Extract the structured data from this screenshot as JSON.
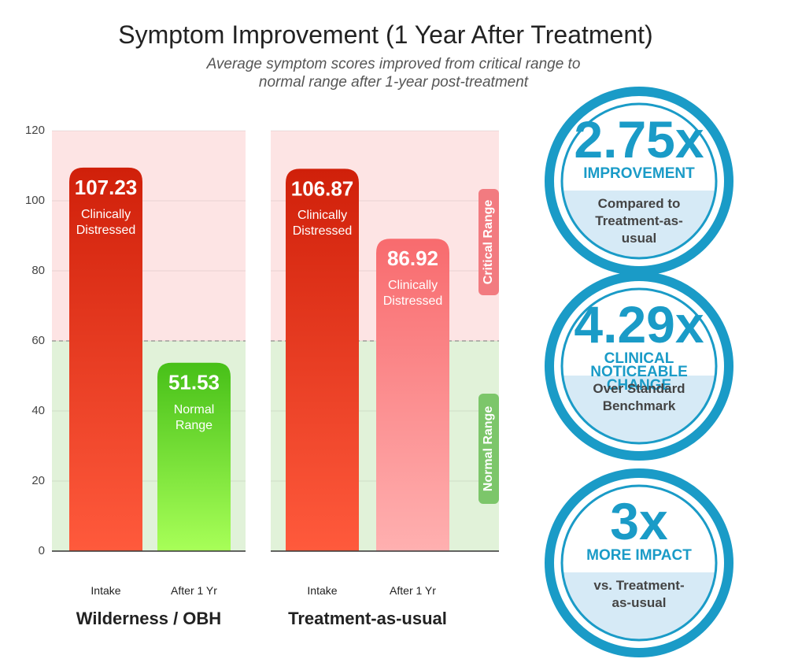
{
  "chart_data": {
    "type": "bar",
    "title": "Symptom Improvement (1 Year After Treatment)",
    "subtitle": "Average symptom scores improved from critical range to normal range after 1-year post-treatment",
    "ylim": [
      0,
      120
    ],
    "yticks": [
      0,
      20,
      40,
      60,
      80,
      100,
      120
    ],
    "grid": true,
    "threshold": 60,
    "bands": [
      {
        "label": "Critical Range",
        "range": [
          60,
          120
        ],
        "color": "#fde4e4",
        "tag_color": "#f27b80"
      },
      {
        "label": "Normal Range",
        "range": [
          0,
          60
        ],
        "color": "#e1f2d9",
        "tag_color": "#7cc66a"
      }
    ],
    "groups": [
      {
        "name": "Wilderness / OBH",
        "categories": [
          "Intake",
          "After 1 Yr"
        ],
        "values": [
          107.23,
          51.53
        ],
        "status": [
          "Clinically Distressed",
          "Normal Range"
        ],
        "colors": [
          [
            "#d0200a",
            "#ff5a3c"
          ],
          [
            "#47c018",
            "#a8ff58"
          ]
        ]
      },
      {
        "name": "Treatment-as-usual",
        "categories": [
          "Intake",
          "After 1 Yr"
        ],
        "values": [
          106.87,
          86.92
        ],
        "status": [
          "Clinically Distressed",
          "Clinically Distressed"
        ],
        "colors": [
          [
            "#d0200a",
            "#ff5a3c"
          ],
          [
            "#f86b6e",
            "#ffb0b0"
          ]
        ]
      }
    ]
  },
  "stats": [
    {
      "value": "2.75x",
      "label": "IMPROVEMENT",
      "note": "Compared to Treatment-as-usual"
    },
    {
      "value": "4.29x",
      "label": "CLINICAL NOTICEABLE CHANGE",
      "note": "Over Standard Benchmark"
    },
    {
      "value": "3x",
      "label": "MORE IMPACT",
      "note": "vs. Treatment-as-usual"
    }
  ]
}
